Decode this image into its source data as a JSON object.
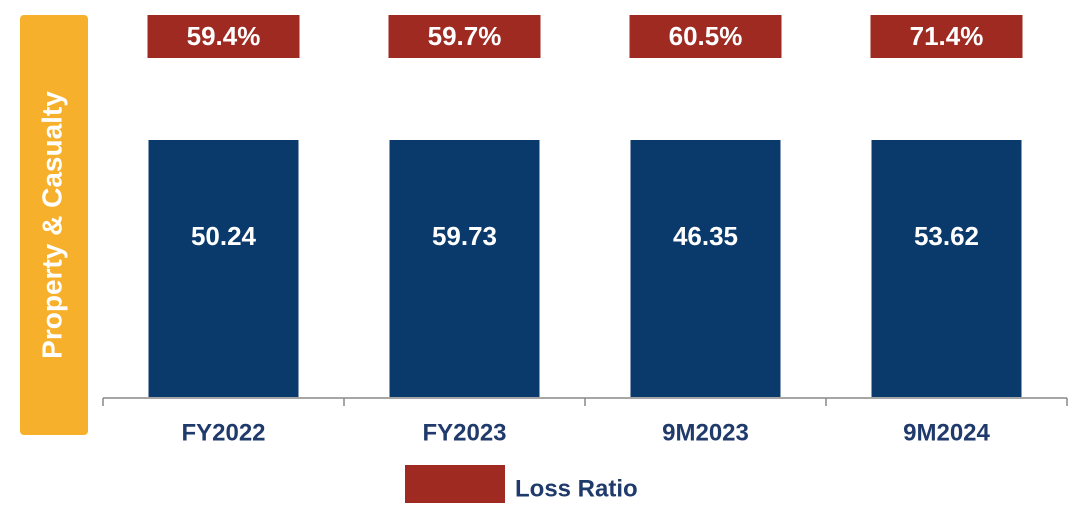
{
  "side_label": "Property & Casualty",
  "columns": [
    {
      "category": "FY2022",
      "value": "50.24",
      "loss_ratio": "59.4%"
    },
    {
      "category": "FY2023",
      "value": "59.73",
      "loss_ratio": "59.7%"
    },
    {
      "category": "9M2023",
      "value": "46.35",
      "loss_ratio": "60.5%"
    },
    {
      "category": "9M2024",
      "value": "53.62",
      "loss_ratio": "71.4%"
    }
  ],
  "legend": "Loss Ratio"
}
